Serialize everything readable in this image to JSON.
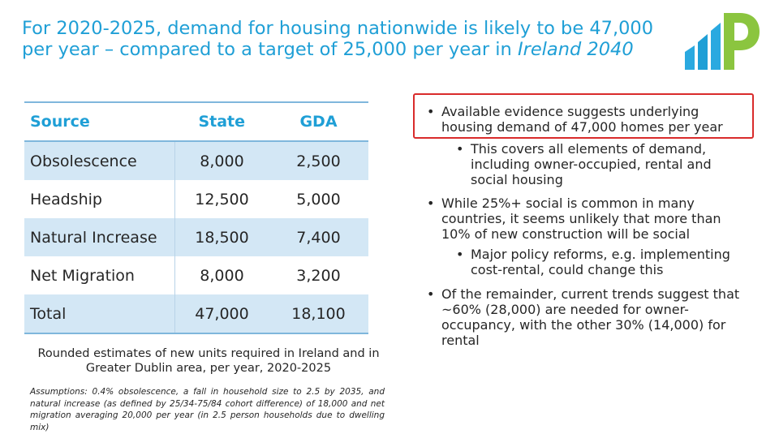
{
  "title": {
    "main": "For 2020-2025, demand for housing nationwide is likely to be 47,000 per year – compared to a target of 25,000 per year in",
    "italic": "Ireland 2040"
  },
  "table": {
    "headers": [
      "Source",
      "State",
      "GDA"
    ],
    "rows": [
      [
        "Obsolescence",
        "8,000",
        "2,500"
      ],
      [
        "Headship",
        "12,500",
        "5,000"
      ],
      [
        "Natural Increase",
        "18,500",
        "7,400"
      ],
      [
        "Net Migration",
        "8,000",
        "3,200"
      ],
      [
        "Total",
        "47,000",
        "18,100"
      ]
    ]
  },
  "caption": "Rounded estimates of new units required in Ireland and in Greater Dublin area, per year, 2020-2025",
  "assumptions": "Assumptions: 0.4% obsolescence, a fall in household size to 2.5 by 2035, and natural increase (as defined by 25/34-75/84 cohort difference) of 18,000 and net migration averaging 20,000 per year (in 2.5 person households due to dwelling mix)",
  "bullets": [
    "Available evidence suggests underlying housing demand of 47,000 homes per year",
    "This covers all elements of demand, including owner-occupied, rental and social housing",
    "While 25%+ social is common in many countries, it seems unlikely that more than 10% of new construction will be social",
    "Major policy reforms, e.g. implementing cost-rental, could change this",
    "Of the remainder, current trends suggest that ~60% (28,000) are needed for owner-occupancy, with the other 30% (14,000) for rental"
  ],
  "bullet_glyph": "•",
  "colors": {
    "accent": "#1f9fd6",
    "highlight": "#d92b2b",
    "shade": "#d3e7f5",
    "logo_green": "#8bc53f"
  }
}
